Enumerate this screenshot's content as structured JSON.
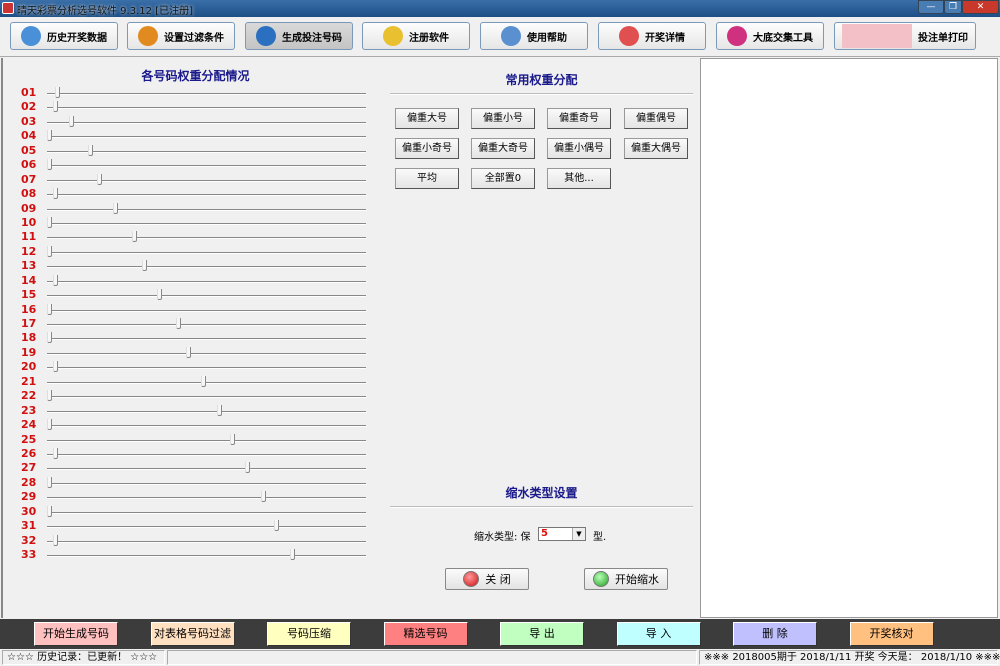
{
  "window": {
    "title": "晴天彩票分析选号软件 9.3.12  [已注册]",
    "minimize": "—",
    "restore": "❐",
    "close": "✕"
  },
  "toolbar": [
    {
      "label": "历史开奖数据",
      "icon": "history-data-icon",
      "color": "#4a90d9"
    },
    {
      "label": "设置过滤条件",
      "icon": "tools-icon",
      "color": "#e08a20"
    },
    {
      "label": "生成投注号码",
      "icon": "globe-icon",
      "color": "#2a6fc0",
      "active": true
    },
    {
      "label": "注册软件",
      "icon": "key-icon",
      "color": "#e8c030"
    },
    {
      "label": "使用帮助",
      "icon": "help-icon",
      "color": "#5a8fd0"
    },
    {
      "label": "开奖详情",
      "icon": "question-mark-icon",
      "color": "#e05050"
    },
    {
      "label": "大底交集工具",
      "icon": "pie-chart-icon",
      "color": "#d03080"
    },
    {
      "label": "投注单打印",
      "icon": "ticket-icon",
      "color": "#f4c0c8"
    }
  ],
  "weights": {
    "title": "各号码权重分配情况",
    "rows": [
      {
        "num": "01",
        "value": 2.5
      },
      {
        "num": "02",
        "value": 2
      },
      {
        "num": "03",
        "value": 7
      },
      {
        "num": "04",
        "value": 0
      },
      {
        "num": "05",
        "value": 13
      },
      {
        "num": "06",
        "value": 0
      },
      {
        "num": "07",
        "value": 16
      },
      {
        "num": "08",
        "value": 2
      },
      {
        "num": "09",
        "value": 21
      },
      {
        "num": "10",
        "value": 0
      },
      {
        "num": "11",
        "value": 27
      },
      {
        "num": "12",
        "value": 0
      },
      {
        "num": "13",
        "value": 30
      },
      {
        "num": "14",
        "value": 2
      },
      {
        "num": "15",
        "value": 35
      },
      {
        "num": "16",
        "value": 0
      },
      {
        "num": "17",
        "value": 41
      },
      {
        "num": "18",
        "value": 0
      },
      {
        "num": "19",
        "value": 44
      },
      {
        "num": "20",
        "value": 2
      },
      {
        "num": "21",
        "value": 49
      },
      {
        "num": "22",
        "value": 0
      },
      {
        "num": "23",
        "value": 54
      },
      {
        "num": "24",
        "value": 0
      },
      {
        "num": "25",
        "value": 58
      },
      {
        "num": "26",
        "value": 2
      },
      {
        "num": "27",
        "value": 63
      },
      {
        "num": "28",
        "value": 0
      },
      {
        "num": "29",
        "value": 68
      },
      {
        "num": "30",
        "value": 0
      },
      {
        "num": "31",
        "value": 72
      },
      {
        "num": "32",
        "value": 2
      },
      {
        "num": "33",
        "value": 77
      }
    ]
  },
  "presets": {
    "title": "常用权重分配",
    "buttons": [
      "偏重大号",
      "偏重小号",
      "偏重奇号",
      "偏重偶号",
      "偏重小奇号",
      "偏重大奇号",
      "偏重小偶号",
      "偏重大偶号",
      "平均",
      "全部置0",
      "其他..."
    ]
  },
  "shrink": {
    "title": "缩水类型设置",
    "label": "缩水类型: 保",
    "value": "5",
    "suffix": "型.",
    "close": "关 闭",
    "start": "开始缩水"
  },
  "bottom": [
    {
      "label": "开始生成号码",
      "color": "#ffc0c0"
    },
    {
      "label": "对表格号码过滤",
      "color": "#ffe0c0"
    },
    {
      "label": "号码压缩",
      "color": "#ffffc0"
    },
    {
      "label": "精选号码",
      "color": "#ff8080"
    },
    {
      "label": "导 出",
      "color": "#c0ffc0"
    },
    {
      "label": "导 入",
      "color": "#c0ffff"
    },
    {
      "label": "删 除",
      "color": "#c0c0ff"
    },
    {
      "label": "开奖核对",
      "color": "#ffc080"
    }
  ],
  "status": {
    "left": "☆☆☆ 历史记录：已更新！ ☆☆☆",
    "right": "※※※  2018005期于 2018/1/11 开奖    今天是：  2018/1/10 ※※※"
  }
}
